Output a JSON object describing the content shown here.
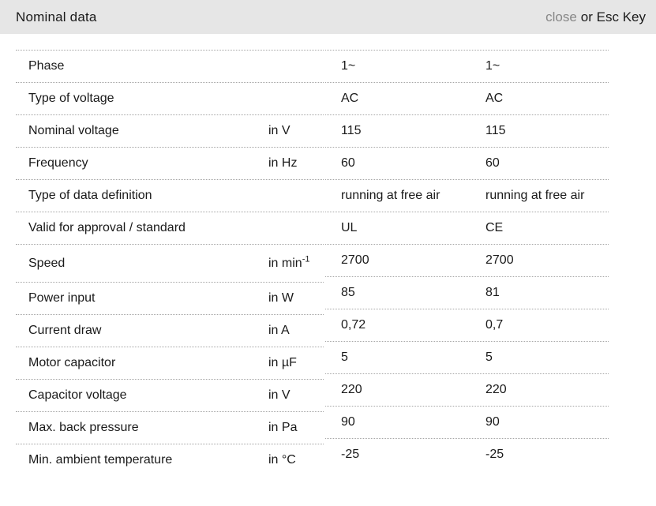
{
  "header": {
    "title": "Nominal data",
    "close_label": "close",
    "esc_hint": "or Esc Key"
  },
  "table": {
    "rows": [
      {
        "label": "Phase",
        "unit": "",
        "unit_sup": "",
        "values": [
          "1~",
          "1~"
        ]
      },
      {
        "label": "Type of voltage",
        "unit": "",
        "unit_sup": "",
        "values": [
          "AC",
          "AC"
        ]
      },
      {
        "label": "Nominal voltage",
        "unit": "in V",
        "unit_sup": "",
        "values": [
          "115",
          "115"
        ]
      },
      {
        "label": "Frequency",
        "unit": "in Hz",
        "unit_sup": "",
        "values": [
          "60",
          "60"
        ]
      },
      {
        "label": "Type of data definition",
        "unit": "",
        "unit_sup": "",
        "values": [
          "running at free air",
          "running at free air"
        ]
      },
      {
        "label": "Valid for approval / standard",
        "unit": "",
        "unit_sup": "",
        "values": [
          "UL",
          "CE"
        ]
      },
      {
        "label": "Speed",
        "unit": "in min",
        "unit_sup": "-1",
        "values": [
          "2700",
          "2700"
        ]
      },
      {
        "label": "Power input",
        "unit": "in W",
        "unit_sup": "",
        "values": [
          "85",
          "81"
        ]
      },
      {
        "label": "Current draw",
        "unit": "in A",
        "unit_sup": "",
        "values": [
          "0,72",
          "0,7"
        ]
      },
      {
        "label": "Motor capacitor",
        "unit": "in µF",
        "unit_sup": "",
        "values": [
          "5",
          "5"
        ]
      },
      {
        "label": "Capacitor voltage",
        "unit": "in V",
        "unit_sup": "",
        "values": [
          "220",
          "220"
        ]
      },
      {
        "label": "Max. back pressure",
        "unit": "in Pa",
        "unit_sup": "",
        "values": [
          "90",
          "90"
        ]
      },
      {
        "label": "Min. ambient temperature",
        "unit": "in °C",
        "unit_sup": "",
        "values": [
          "-25",
          "-25"
        ]
      }
    ]
  },
  "colors": {
    "header_background": "#e6e6e6",
    "close_link": "#878787",
    "text": "#1a1a1a",
    "row_border": "#a6a6a6"
  }
}
